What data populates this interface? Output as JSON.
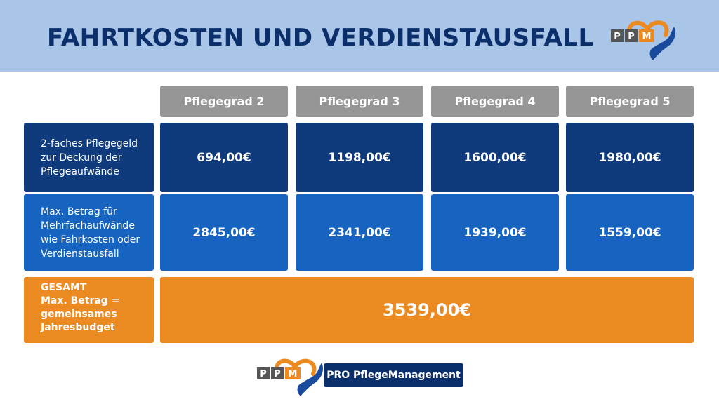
{
  "header": {
    "title": "FAHRTKOSTEN UND VERDIENSTAUSFALL",
    "logo_text": "PPM"
  },
  "colors": {
    "header_bg": "#a9c6e8",
    "title": "#0b2f6b",
    "column_header_bg": "#969696",
    "row1_bg": "#0f3b7c",
    "row2_bg": "#1664c0",
    "total_bg": "#ec8a22",
    "logo_orange": "#ec8a22",
    "logo_blue": "#1a4a9c"
  },
  "table": {
    "columns": [
      "Pflegegrad 2",
      "Pflegegrad 3",
      "Pflegegrad 4",
      "Pflegegrad 5"
    ],
    "rows": [
      {
        "label": "2-faches Pflegegeld\nzur Deckung der\nPflegeaufwände",
        "values": [
          "694,00€",
          "1198,00€",
          "1600,00€",
          "1980,00€"
        ]
      },
      {
        "label": "Max. Betrag für\nMehrfachaufwände\nwie Fahrkosten oder\nVerdienstausfall",
        "values": [
          "2845,00€",
          "2341,00€",
          "1939,00€",
          "1559,00€"
        ]
      }
    ],
    "total": {
      "label": "GESAMT\nMax. Betrag =\ngemeinsames\nJahresbudget",
      "value": "3539,00€"
    }
  },
  "footer": {
    "logo_text": "PPM",
    "brand": "PRO PflegeManagement"
  }
}
